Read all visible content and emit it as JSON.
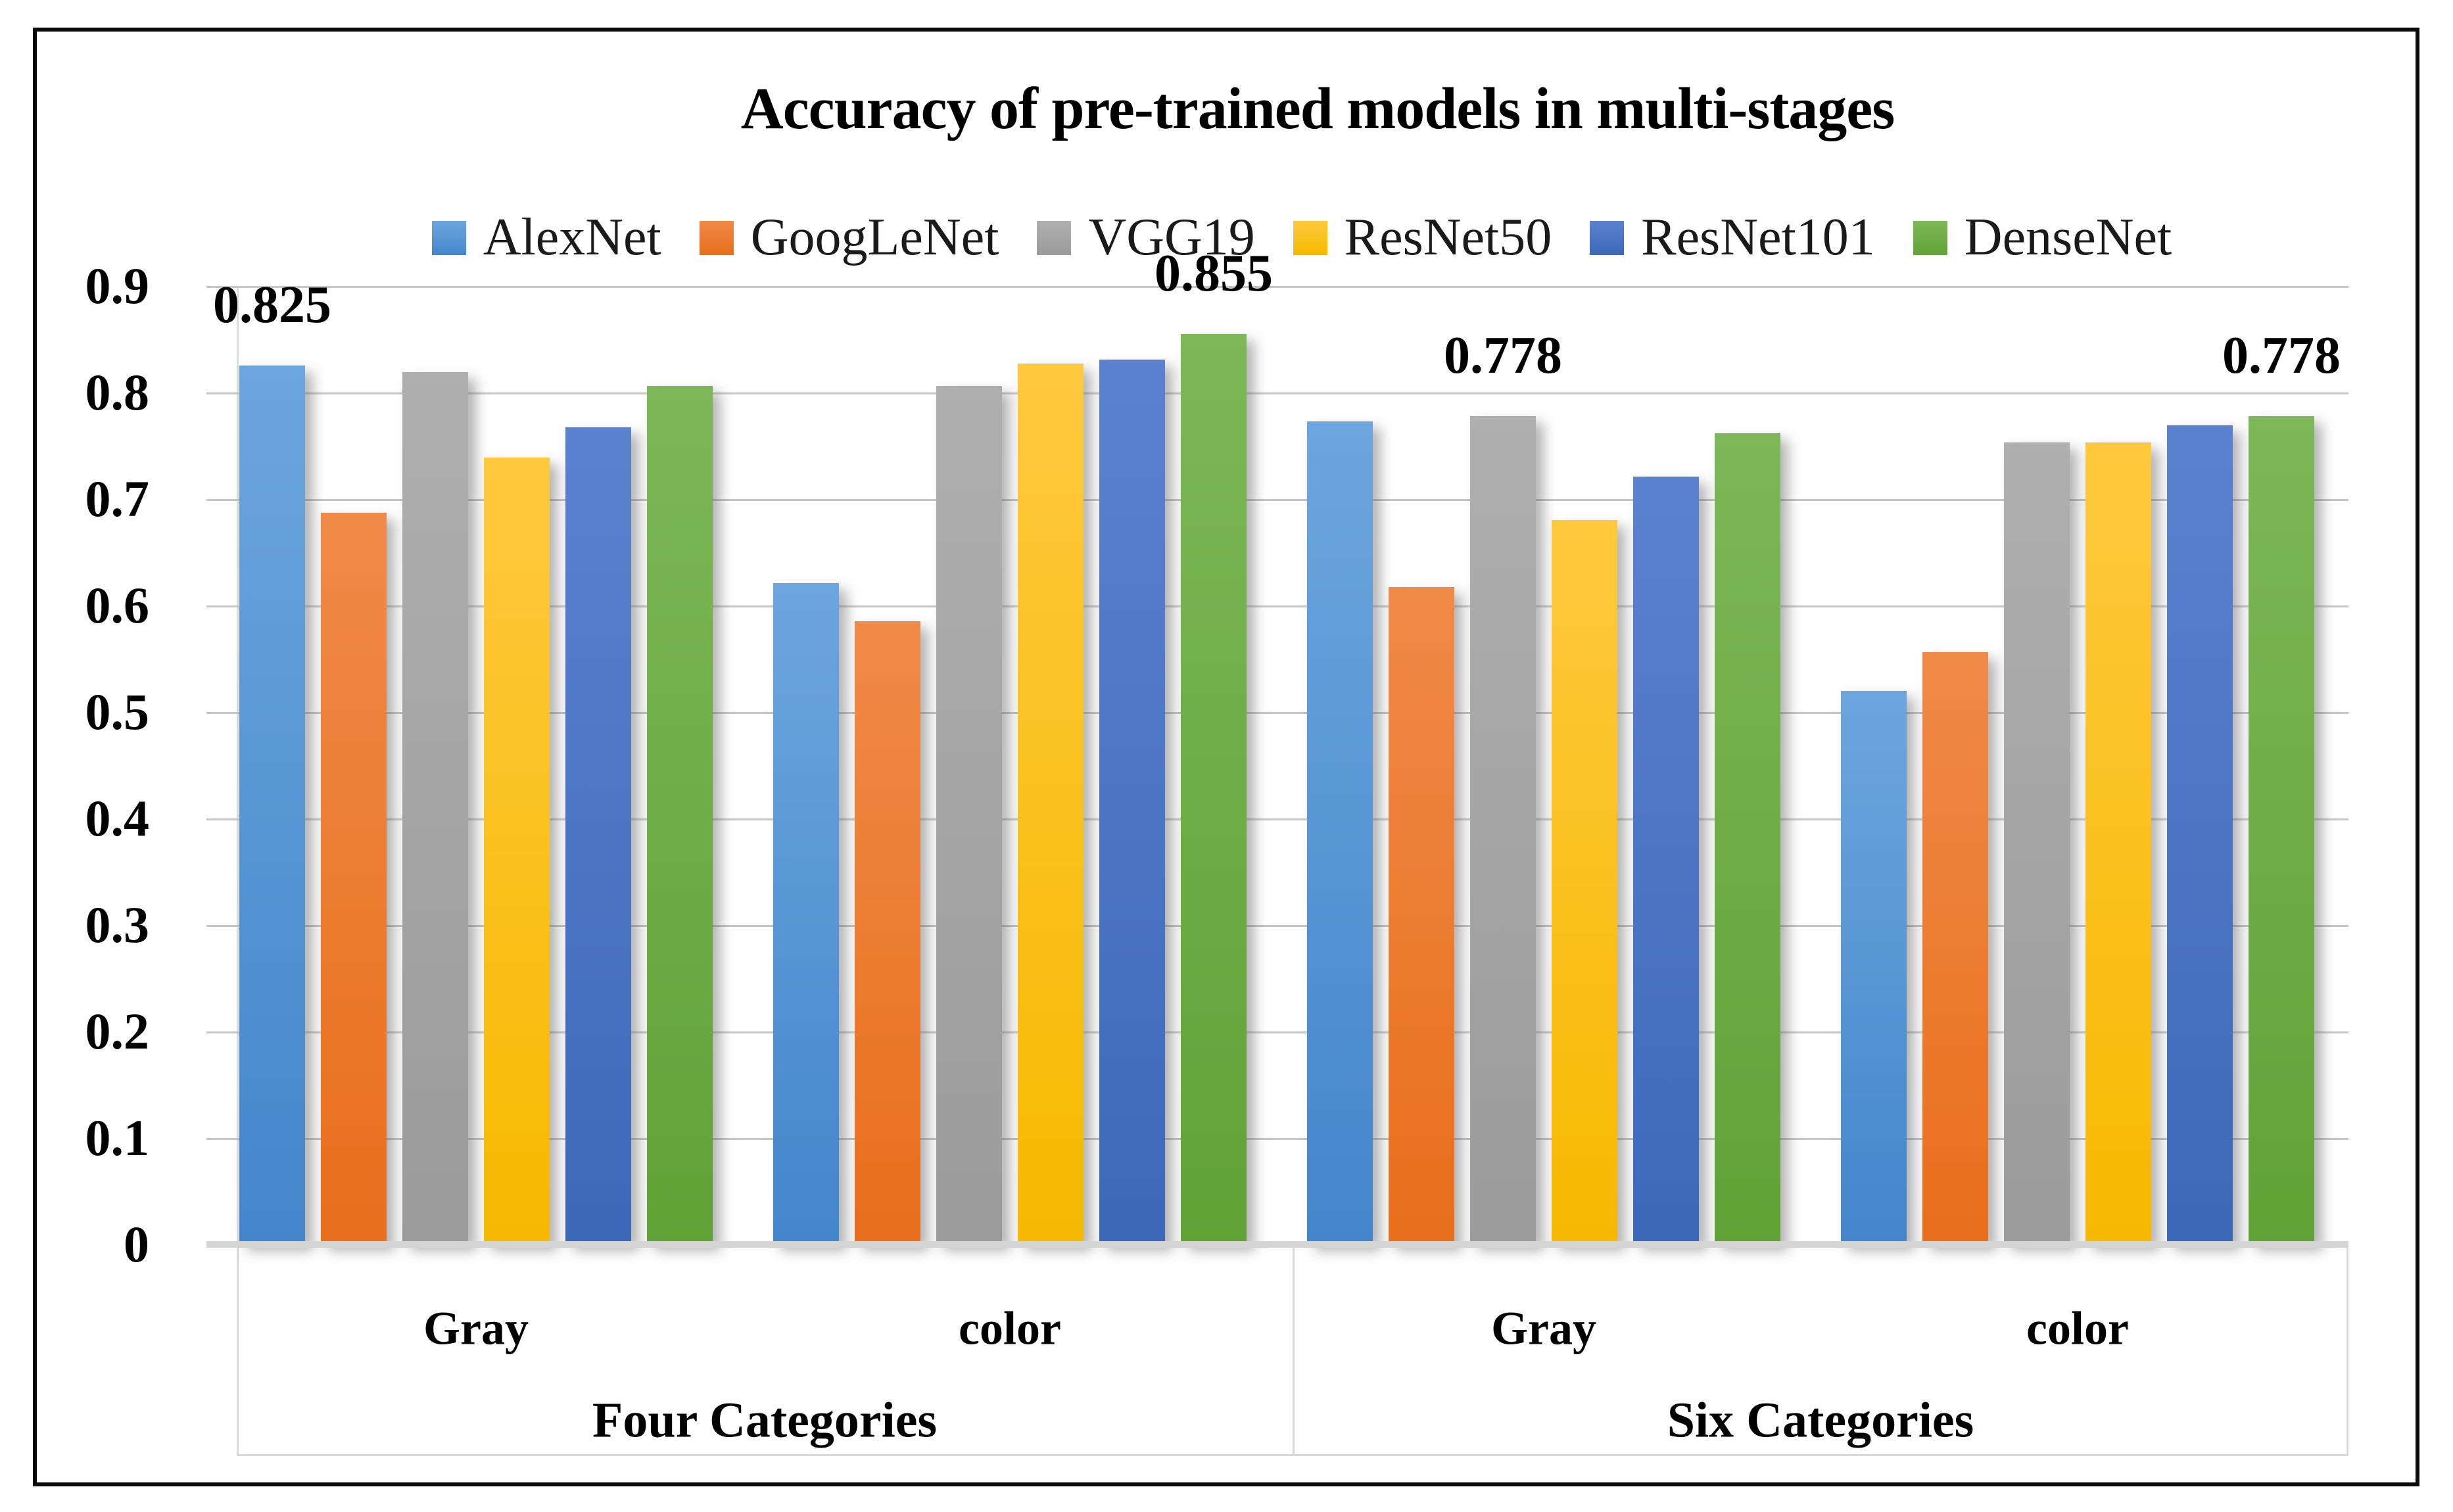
{
  "chart_data": {
    "type": "bar",
    "title": "Accuracy of pre-trained models in multi-stages",
    "xlabel": "",
    "ylabel": "",
    "ylim": [
      0,
      0.9
    ],
    "grid": true,
    "legend_position": "top",
    "y_ticks": [
      "0.9",
      "0.8",
      "0.7",
      "0.6",
      "0.5",
      "0.4",
      "0.3",
      "0.2",
      "0.1",
      "0"
    ],
    "series": [
      {
        "name": "AlexNet",
        "color": "#5B9BD5",
        "gradient": [
          "#6CA6DE",
          "#4486CB"
        ]
      },
      {
        "name": "GoogLeNet",
        "color": "#ED7D31",
        "gradient": [
          "#F08A49",
          "#E86F1B"
        ]
      },
      {
        "name": "VGG19",
        "color": "#A5A5A5",
        "gradient": [
          "#AFAFAF",
          "#9B9B9B"
        ]
      },
      {
        "name": "ResNet50",
        "color": "#FFC000",
        "gradient": [
          "#FFC93E",
          "#F6B900"
        ]
      },
      {
        "name": "ResNet101",
        "color": "#4472C4",
        "gradient": [
          "#5B82CE",
          "#3D68BA"
        ]
      },
      {
        "name": "DenseNet",
        "color": "#70AD47",
        "gradient": [
          "#7EB757",
          "#61A237"
        ]
      }
    ],
    "sections": [
      {
        "label": "Four Categories",
        "groups": [
          {
            "label": "Gray",
            "values": [
              0.825,
              0.687,
              0.819,
              0.739,
              0.767,
              0.806
            ]
          },
          {
            "label": "color",
            "values": [
              0.621,
              0.585,
              0.806,
              0.827,
              0.831,
              0.855
            ]
          }
        ]
      },
      {
        "label": "Six Categories",
        "groups": [
          {
            "label": "Gray",
            "values": [
              0.773,
              0.617,
              0.778,
              0.68,
              0.721,
              0.762
            ]
          },
          {
            "label": "color",
            "values": [
              0.52,
              0.556,
              0.753,
              0.753,
              0.769,
              0.778
            ]
          }
        ]
      }
    ],
    "annotations": [
      {
        "section": 0,
        "group": 0,
        "series": 0,
        "text": "0.825"
      },
      {
        "section": 0,
        "group": 1,
        "series": 5,
        "text": "0.855"
      },
      {
        "section": 1,
        "group": 0,
        "series": 2,
        "text": "0.778"
      },
      {
        "section": 1,
        "group": 1,
        "series": 5,
        "text": "0.778"
      }
    ]
  }
}
